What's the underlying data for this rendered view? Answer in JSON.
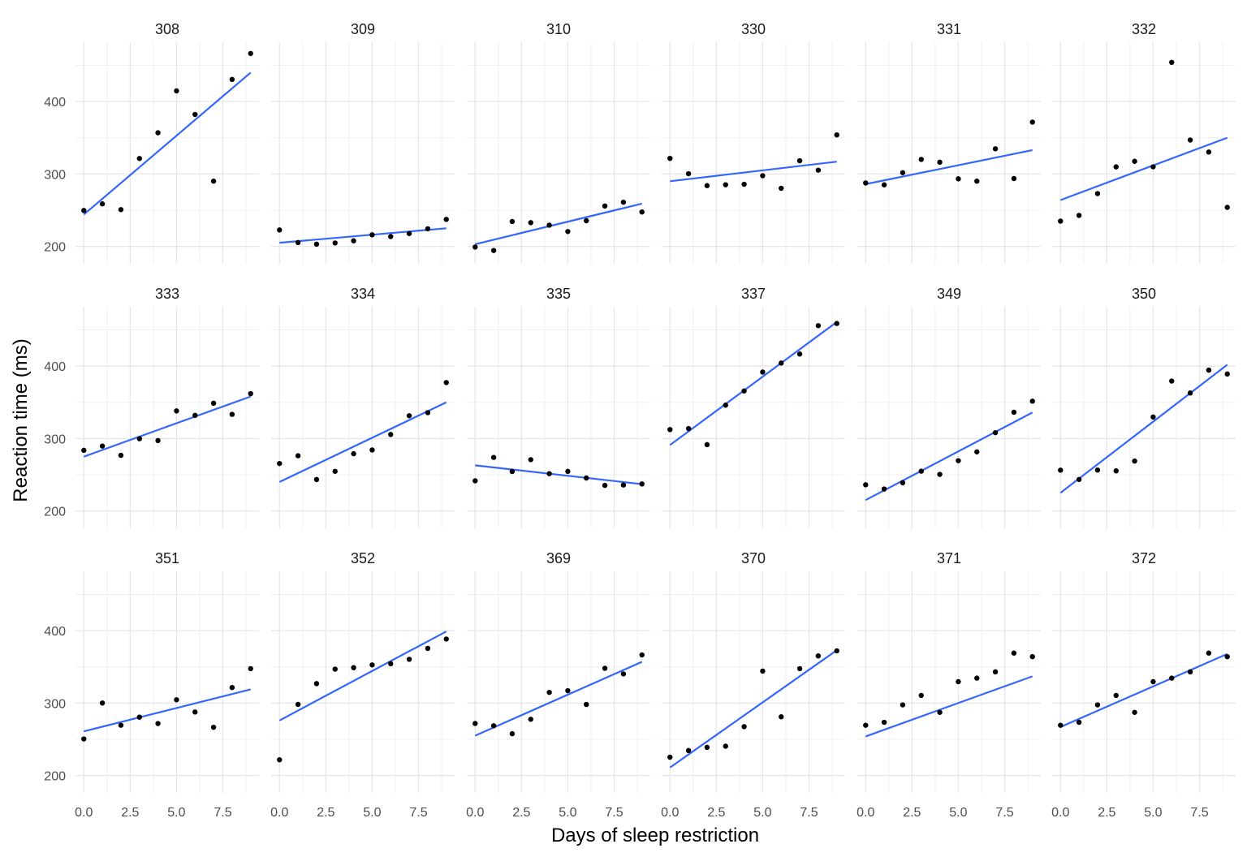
{
  "chart_data": {
    "type": "scatter",
    "xlabel": "Days of sleep restriction",
    "ylabel": "Reaction time (ms)",
    "xlim": [
      -0.45,
      9.45
    ],
    "ylim": [
      176,
      482
    ],
    "x_ticks": [
      0,
      2.5,
      5,
      7.5
    ],
    "x_tick_labels": [
      "0.0",
      "2.5",
      "5.0",
      "7.5"
    ],
    "y_ticks": [
      200,
      300,
      400
    ],
    "y_tick_labels": [
      "200",
      "300",
      "400"
    ],
    "grid": true,
    "point_color": "#000000",
    "fit_color": "#3366FF",
    "panels": [
      {
        "label": "308",
        "x": [
          0,
          1,
          2,
          3,
          4,
          5,
          6,
          7,
          8,
          9
        ],
        "y": [
          249.6,
          258.7,
          250.8,
          321.4,
          356.9,
          414.7,
          382.2,
          290.1,
          430.6,
          466.4
        ],
        "fit": {
          "x": [
            0,
            9
          ],
          "y": [
            244,
            440
          ]
        }
      },
      {
        "label": "309",
        "x": [
          0,
          1,
          2,
          3,
          4,
          5,
          6,
          7,
          8,
          9
        ],
        "y": [
          222.7,
          205.3,
          203.0,
          204.7,
          207.7,
          216.0,
          213.6,
          217.7,
          224.3,
          237.3
        ],
        "fit": {
          "x": [
            0,
            9
          ],
          "y": [
            205,
            225
          ]
        }
      },
      {
        "label": "310",
        "x": [
          0,
          1,
          2,
          3,
          4,
          5,
          6,
          7,
          8,
          9
        ],
        "y": [
          199.1,
          194.3,
          234.3,
          232.8,
          229.3,
          220.5,
          235.4,
          255.8,
          261.0,
          247.5
        ],
        "fit": {
          "x": [
            0,
            9
          ],
          "y": [
            203,
            259
          ]
        }
      },
      {
        "label": "330",
        "x": [
          0,
          1,
          2,
          3,
          4,
          5,
          6,
          7,
          8,
          9
        ],
        "y": [
          321.5,
          300.4,
          283.9,
          285.1,
          285.8,
          297.6,
          280.2,
          318.3,
          305.3,
          354.0
        ],
        "fit": {
          "x": [
            0,
            9
          ],
          "y": [
            290,
            317
          ]
        }
      },
      {
        "label": "331",
        "x": [
          0,
          1,
          2,
          3,
          4,
          5,
          6,
          7,
          8,
          9
        ],
        "y": [
          287.6,
          285.0,
          301.8,
          320.1,
          316.3,
          293.3,
          290.1,
          334.8,
          293.7,
          371.6
        ],
        "fit": {
          "x": [
            0,
            9
          ],
          "y": [
            286,
            333
          ]
        }
      },
      {
        "label": "332",
        "x": [
          0,
          1,
          2,
          3,
          4,
          5,
          6,
          7,
          8,
          9
        ],
        "y": [
          234.9,
          242.8,
          272.9,
          309.8,
          317.5,
          309.9,
          454.2,
          346.9,
          330.3,
          253.9
        ],
        "fit": {
          "x": [
            0,
            9
          ],
          "y": [
            264,
            350
          ]
        }
      },
      {
        "label": "333",
        "x": [
          0,
          1,
          2,
          3,
          4,
          5,
          6,
          7,
          8,
          9
        ],
        "y": [
          283.8,
          289.6,
          276.8,
          299.8,
          297.2,
          338.1,
          332.0,
          348.8,
          333.4,
          362.0
        ],
        "fit": {
          "x": [
            0,
            9
          ],
          "y": [
            275,
            358
          ]
        }
      },
      {
        "label": "334",
        "x": [
          0,
          1,
          2,
          3,
          4,
          5,
          6,
          7,
          8,
          9
        ],
        "y": [
          265.5,
          276.2,
          243.4,
          254.7,
          279.0,
          284.2,
          305.6,
          331.5,
          335.8,
          377.3
        ],
        "fit": {
          "x": [
            0,
            9
          ],
          "y": [
            240,
            350
          ]
        }
      },
      {
        "label": "335",
        "x": [
          0,
          1,
          2,
          3,
          4,
          5,
          6,
          7,
          8,
          9
        ],
        "y": [
          241.6,
          273.9,
          254.5,
          270.8,
          251.5,
          254.6,
          245.5,
          235.3,
          235.8,
          237.3
        ],
        "fit": {
          "x": [
            0,
            9
          ],
          "y": [
            263,
            237
          ]
        }
      },
      {
        "label": "337",
        "x": [
          0,
          1,
          2,
          3,
          4,
          5,
          6,
          7,
          8,
          9
        ],
        "y": [
          312.4,
          313.8,
          291.6,
          346.1,
          365.7,
          391.8,
          404.3,
          416.7,
          455.9,
          458.9
        ],
        "fit": {
          "x": [
            0,
            9
          ],
          "y": [
            291,
            461
          ]
        }
      },
      {
        "label": "349",
        "x": [
          0,
          1,
          2,
          3,
          4,
          5,
          6,
          7,
          8,
          9
        ],
        "y": [
          236.1,
          230.3,
          238.9,
          254.9,
          250.5,
          269.4,
          281.6,
          308.1,
          336.3,
          351.6
        ],
        "fit": {
          "x": [
            0,
            9
          ],
          "y": [
            215,
            336
          ]
        }
      },
      {
        "label": "350",
        "x": [
          0,
          1,
          2,
          3,
          4,
          5,
          6,
          7,
          8,
          9
        ],
        "y": [
          256.3,
          243.5,
          256.5,
          255.3,
          268.9,
          329.7,
          379.4,
          362.9,
          394.5,
          389.1
        ],
        "fit": {
          "x": [
            0,
            9
          ],
          "y": [
            225,
            402
          ]
        }
      },
      {
        "label": "351",
        "x": [
          0,
          1,
          2,
          3,
          4,
          5,
          6,
          7,
          8,
          9
        ],
        "y": [
          250.5,
          300.1,
          269.4,
          280.6,
          271.8,
          304.6,
          287.7,
          266.6,
          321.5,
          347.6
        ],
        "fit": {
          "x": [
            0,
            9
          ],
          "y": [
            261,
            319
          ]
        }
      },
      {
        "label": "352",
        "x": [
          0,
          1,
          2,
          3,
          4,
          5,
          6,
          7,
          8,
          9
        ],
        "y": [
          221.7,
          298.2,
          326.9,
          346.9,
          348.9,
          352.8,
          354.4,
          360.5,
          375.6,
          388.5
        ],
        "fit": {
          "x": [
            0,
            9
          ],
          "y": [
            276,
            399
          ]
        }
      },
      {
        "label": "369",
        "x": [
          0,
          1,
          2,
          3,
          4,
          5,
          6,
          7,
          8,
          9
        ],
        "y": [
          271.9,
          268.7,
          257.7,
          277.7,
          314.8,
          317.2,
          298.1,
          348.1,
          340.3,
          366.5
        ],
        "fit": {
          "x": [
            0,
            9
          ],
          "y": [
            255,
            357
          ]
        }
      },
      {
        "label": "370",
        "x": [
          0,
          1,
          2,
          3,
          4,
          5,
          6,
          7,
          8,
          9
        ],
        "y": [
          225.3,
          234.5,
          238.9,
          240.5,
          267.5,
          344.2,
          281.1,
          347.6,
          365.2,
          372.2
        ],
        "fit": {
          "x": [
            0,
            9
          ],
          "y": [
            211,
            373
          ]
        }
      },
      {
        "label": "371",
        "x": [
          0,
          1,
          2,
          3,
          4,
          5,
          6,
          7,
          8,
          9
        ],
        "y": [
          269.4,
          273.5,
          297.6,
          310.6,
          287.2,
          329.6,
          334.5,
          343.2,
          369.1,
          364.1
        ],
        "fit": {
          "x": [
            0,
            9
          ],
          "y": [
            254,
            337
          ]
        }
      },
      {
        "label": "372",
        "x": [
          0,
          1,
          2,
          3,
          4,
          5,
          6,
          7,
          8,
          9
        ],
        "y": [
          269.4,
          273.5,
          297.6,
          310.6,
          287.2,
          329.6,
          334.5,
          343.2,
          369.1,
          364.1
        ],
        "fit": {
          "x": [
            0,
            9
          ],
          "y": [
            267,
            368
          ]
        }
      }
    ]
  }
}
